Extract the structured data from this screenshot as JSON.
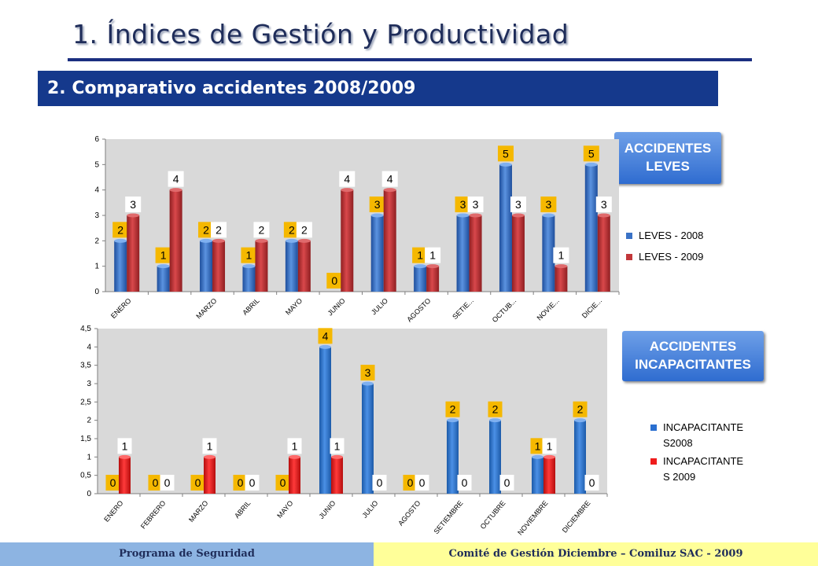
{
  "title": "1. Índices de Gestión y Productividad",
  "subtitle": "2. Comparativo accidentes 2008/2009",
  "buttons": {
    "leves": "ACCIDENTES LEVES",
    "incapacitantes": "ACCIDENTES INCAPACITANTES"
  },
  "footer": {
    "left": "Programa de Seguridad",
    "right": "Comité de Gestión Diciembre – Comiluz SAC - 2009"
  },
  "colors": {
    "blue": "#3a72c6",
    "red": "#c2373a",
    "red_bright": "#ef1c1c",
    "label_bg": "#f5b800"
  },
  "chart_data": [
    {
      "type": "bar",
      "categories": [
        "ENERO",
        "",
        "MARZO",
        "ABRIL",
        "MAYO",
        "JUNIO",
        "JULIO",
        "AGOSTO",
        "SETIE...",
        "OCTUB...",
        "NOVIE...",
        "DICIE..."
      ],
      "series": [
        {
          "name": "LEVES - 2008",
          "values": [
            2,
            1,
            2,
            1,
            2,
            0,
            3,
            1,
            3,
            5,
            3,
            5
          ]
        },
        {
          "name": "LEVES - 2009",
          "values": [
            3,
            4,
            2,
            2,
            2,
            4,
            4,
            1,
            3,
            3,
            1,
            3
          ]
        }
      ],
      "y_ticks": [
        "0",
        "1",
        "2",
        "3",
        "4",
        "5",
        "6"
      ],
      "ylim": [
        0,
        6
      ],
      "grid": false,
      "legend": "right"
    },
    {
      "type": "bar",
      "categories": [
        "ENERO",
        "FEBRERO",
        "MARZO",
        "ABRIL",
        "MAYO",
        "JUNIO",
        "JULIO",
        "AGOSTO",
        "SETIEMBRE",
        "OCTUBRE",
        "NOVIEMBRE",
        "DICIEMBRE"
      ],
      "series": [
        {
          "name": "INCAPACITANTE S2008",
          "values": [
            0,
            0,
            0,
            0,
            0,
            4,
            3,
            0,
            2,
            2,
            1,
            2
          ]
        },
        {
          "name": "INCAPACITANTE S 2009",
          "values": [
            1,
            0,
            1,
            0,
            1,
            1,
            0,
            0,
            0,
            0,
            1,
            0
          ]
        }
      ],
      "y_ticks": [
        "0",
        "0,5",
        "1",
        "1,5",
        "2",
        "2,5",
        "3",
        "3,5",
        "4",
        "4,5"
      ],
      "ylim": [
        0,
        4.5
      ],
      "grid": false,
      "legend": "right"
    }
  ]
}
